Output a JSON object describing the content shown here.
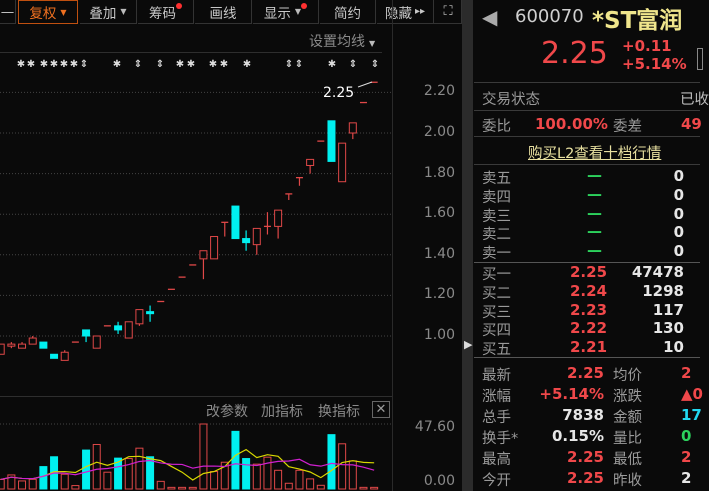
{
  "toolbar": {
    "items": [
      {
        "label": "复权",
        "caret": true,
        "active": true
      },
      {
        "label": "叠加",
        "caret": true
      },
      {
        "label": "筹码",
        "dot": true
      },
      {
        "label": "画线"
      },
      {
        "label": "显示",
        "caret": true,
        "dot": true
      },
      {
        "label": "简约"
      },
      {
        "label": "隐藏",
        "more": "▸▸"
      }
    ],
    "fullscreen_icon": "expand-icon"
  },
  "ma_setting": "设置均线",
  "price_axis": [
    "2.20",
    "2.00",
    "1.80",
    "1.60",
    "1.40",
    "1.20",
    "1.00"
  ],
  "last_price_tag": "2.25",
  "markers": [
    "star",
    "star",
    "star",
    "star",
    "star",
    "star",
    "updown",
    "star",
    "updown",
    "updown",
    "star",
    "star",
    "star",
    "star",
    "star",
    "updown",
    "updown",
    "star",
    "updown",
    "updown"
  ],
  "candles": [
    [
      0.91,
      0.96,
      0.96,
      0.91
    ],
    [
      0.95,
      0.96,
      0.97,
      0.94
    ],
    [
      0.94,
      0.96,
      0.97,
      0.94
    ],
    [
      0.96,
      0.99,
      1.0,
      0.96
    ],
    [
      0.97,
      0.94,
      0.97,
      0.94
    ],
    [
      0.91,
      0.89,
      0.91,
      0.89
    ],
    [
      0.88,
      0.92,
      0.93,
      0.88
    ],
    [
      0.97,
      0.97,
      0.97,
      0.97
    ],
    [
      1.03,
      1.0,
      1.03,
      0.97
    ],
    [
      0.94,
      1.0,
      1.0,
      0.94
    ],
    [
      1.05,
      1.05,
      1.05,
      1.05
    ],
    [
      1.05,
      1.03,
      1.07,
      1.01
    ],
    [
      0.99,
      1.07,
      1.07,
      0.99
    ],
    [
      1.06,
      1.13,
      1.13,
      1.05
    ],
    [
      1.12,
      1.11,
      1.15,
      1.07
    ],
    [
      1.17,
      1.17,
      1.17,
      1.17
    ],
    [
      1.23,
      1.23,
      1.23,
      1.23
    ],
    [
      1.29,
      1.29,
      1.29,
      1.29
    ],
    [
      1.35,
      1.35,
      1.35,
      1.35
    ],
    [
      1.38,
      1.42,
      1.42,
      1.28
    ],
    [
      1.38,
      1.49,
      1.49,
      1.38
    ],
    [
      1.56,
      1.56,
      1.56,
      1.49
    ],
    [
      1.64,
      1.48,
      1.64,
      1.48
    ],
    [
      1.48,
      1.46,
      1.52,
      1.42
    ],
    [
      1.45,
      1.53,
      1.53,
      1.4
    ],
    [
      1.54,
      1.54,
      1.61,
      1.5
    ],
    [
      1.54,
      1.62,
      1.62,
      1.48
    ],
    [
      1.7,
      1.7,
      1.7,
      1.67
    ],
    [
      1.78,
      1.78,
      1.78,
      1.74
    ],
    [
      1.84,
      1.87,
      1.87,
      1.8
    ],
    [
      1.96,
      1.96,
      1.96,
      1.96
    ],
    [
      2.06,
      1.86,
      2.06,
      1.86
    ],
    [
      1.76,
      1.95,
      1.95,
      1.76
    ],
    [
      2.0,
      2.05,
      2.05,
      1.97
    ],
    [
      2.15,
      2.15,
      2.15,
      2.15
    ],
    [
      2.25,
      2.25,
      2.25,
      2.25
    ]
  ],
  "volume": {
    "buttons": [
      "改参数",
      "加指标",
      "换指标"
    ],
    "axis": [
      "47.60",
      "0.00"
    ],
    "values": [
      7,
      10.3,
      5.9,
      7.1,
      16.4,
      23.6,
      10.8,
      2.5,
      28.5,
      32.6,
      12.3,
      22.6,
      22.3,
      29.9,
      23.6,
      5.6,
      1.2,
      1.2,
      1.2,
      47.6,
      12.8,
      19.6,
      42.2,
      22.3,
      18.2,
      23.3,
      13.7,
      4.2,
      13.7,
      7.4,
      2.7,
      39.8,
      33.1,
      20.6,
      1.2,
      1.2
    ],
    "down": [
      4,
      5,
      8,
      11,
      14,
      22,
      23,
      31
    ]
  },
  "colors": {
    "up": "#e04848",
    "down": "#00f0f0",
    "ma5": "#d8d800",
    "ma10": "#d020d0",
    "price_red": "#f0484a",
    "title_yellow": "#f0e68c"
  },
  "quote": {
    "code": "600070",
    "name": "*ST富润",
    "price": "2.25",
    "change": "+0.11",
    "change_pct": "+5.14%",
    "status_label": "交易状态",
    "status_value": "已收",
    "wb_label": "委比",
    "wb_value": "100.00%",
    "wc_label": "委差",
    "wc_value": "49",
    "l2_link": "购买L2查看十档行情",
    "asks": [
      {
        "label": "卖五",
        "price": "—",
        "vol": "0"
      },
      {
        "label": "卖四",
        "price": "—",
        "vol": "0"
      },
      {
        "label": "卖三",
        "price": "—",
        "vol": "0"
      },
      {
        "label": "卖二",
        "price": "—",
        "vol": "0"
      },
      {
        "label": "卖一",
        "price": "—",
        "vol": "0"
      }
    ],
    "bids": [
      {
        "label": "买一",
        "price": "2.25",
        "vol": "47478"
      },
      {
        "label": "买二",
        "price": "2.24",
        "vol": "1298"
      },
      {
        "label": "买三",
        "price": "2.23",
        "vol": "117"
      },
      {
        "label": "买四",
        "price": "2.22",
        "vol": "130"
      },
      {
        "label": "买五",
        "price": "2.21",
        "vol": "10"
      }
    ],
    "stats": [
      {
        "l": "最新",
        "v": "2.25",
        "vc": "red",
        "r": "均价",
        "rv": "2",
        "rc": "red"
      },
      {
        "l": "涨幅",
        "v": "+5.14%",
        "vc": "red",
        "r": "涨跌",
        "rv": "▲0",
        "rc": "red"
      },
      {
        "l": "总手",
        "v": "7838",
        "vc": "white",
        "r": "金额",
        "rv": "17",
        "rc": "cyan"
      },
      {
        "l": "换手*",
        "v": "0.15%",
        "vc": "white",
        "r": "量比",
        "rv": "0",
        "rc": "green"
      },
      {
        "l": "最高",
        "v": "2.25",
        "vc": "red",
        "r": "最低",
        "rv": "2",
        "rc": "red"
      },
      {
        "l": "今开",
        "v": "2.25",
        "vc": "red",
        "r": "昨收",
        "rv": "2",
        "rc": "white"
      }
    ]
  }
}
